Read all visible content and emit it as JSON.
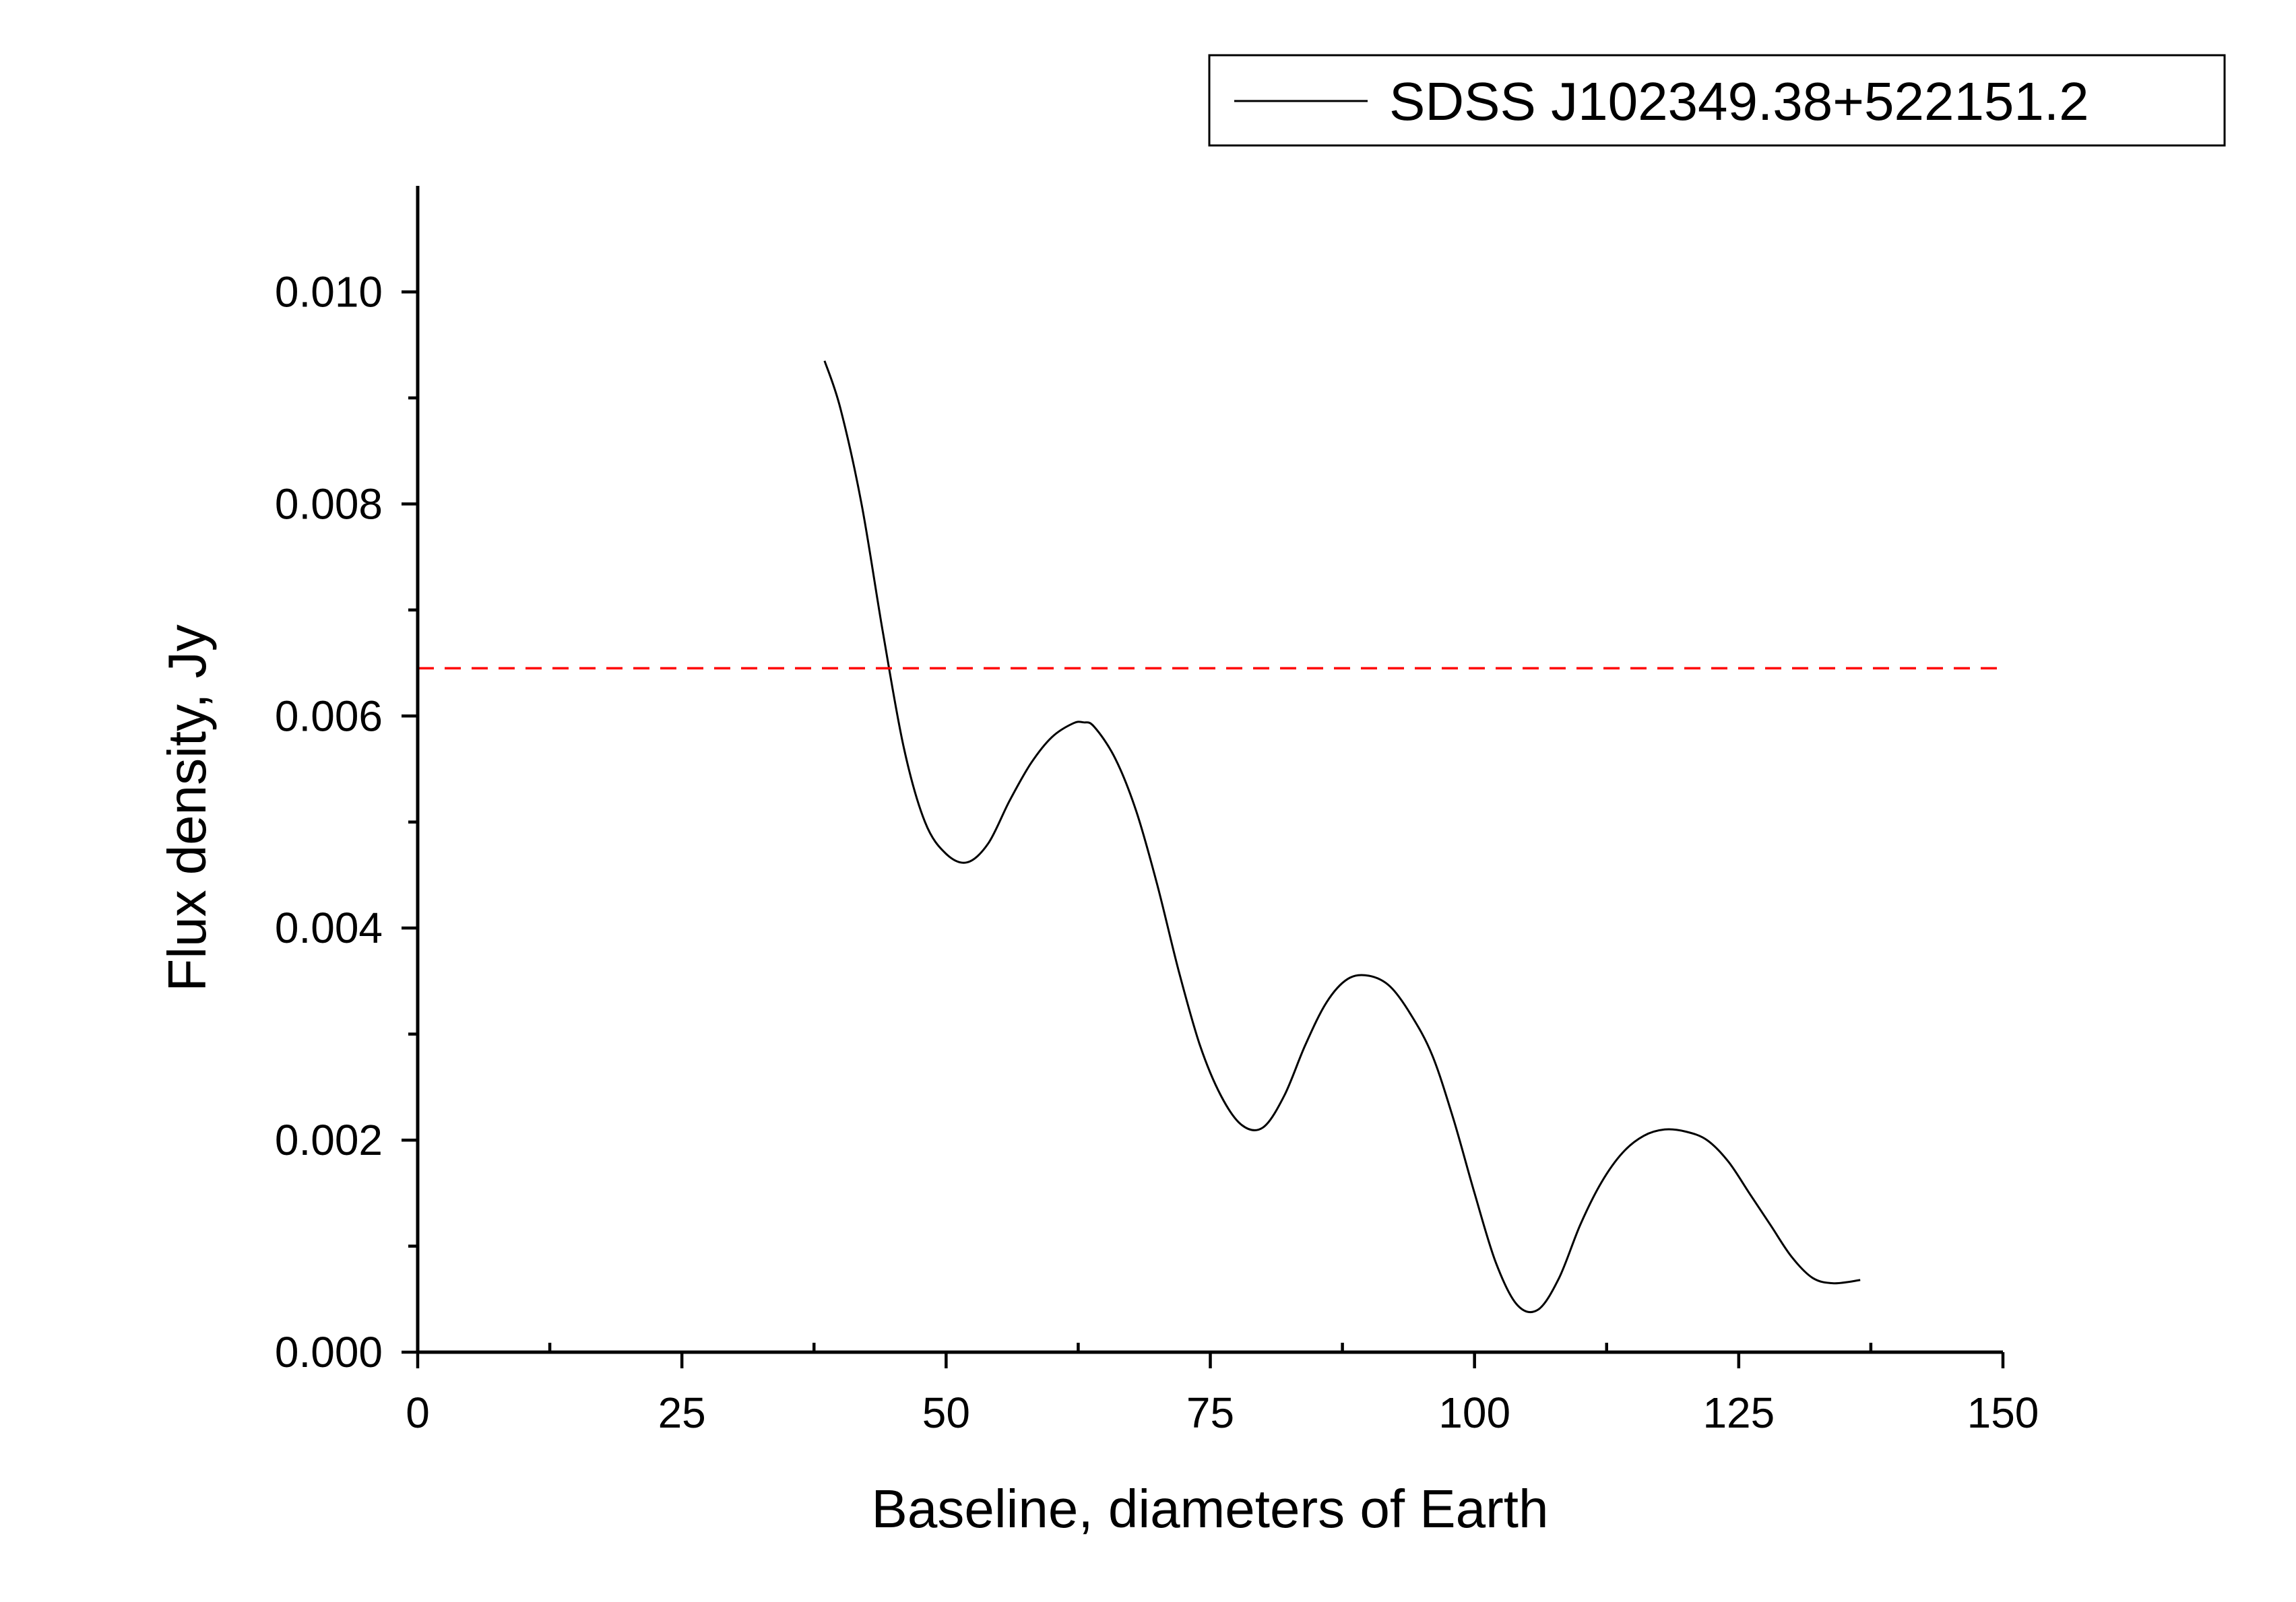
{
  "chart_data": {
    "type": "line",
    "xlabel": "Baseline, diameters of Earth",
    "ylabel": "Flux density, Jy",
    "xlim": [
      0,
      150
    ],
    "ylim": [
      0,
      0.011
    ],
    "x_ticks": [
      "0",
      "25",
      "50",
      "75",
      "100",
      "125",
      "150"
    ],
    "x_tick_values": [
      0,
      25,
      50,
      75,
      100,
      125,
      150
    ],
    "y_ticks": [
      "0.000",
      "0.002",
      "0.004",
      "0.006",
      "0.008",
      "0.010"
    ],
    "y_tick_values": [
      0,
      0.002,
      0.004,
      0.006,
      0.008,
      0.01
    ],
    "x_minor_step": 12.5,
    "y_minor_step": 0.001,
    "grid": false,
    "legend_position": "top-right",
    "series": [
      {
        "name": "SDSS J102349.38+522151.2",
        "color": "#000000",
        "style": "solid",
        "x": [
          38.5,
          40,
          42,
          44,
          46,
          48,
          50,
          52,
          54,
          56,
          58,
          60,
          62,
          63,
          64,
          66,
          68,
          70,
          72,
          74,
          76,
          78,
          80,
          82,
          84,
          86,
          88,
          90,
          92,
          94,
          96,
          98,
          100,
          102,
          104,
          106,
          108,
          110,
          112,
          114,
          116,
          118,
          120,
          122,
          124,
          126,
          128,
          130,
          132,
          134,
          136.5
        ],
        "y": [
          0.00935,
          0.0089,
          0.008,
          0.0068,
          0.0057,
          0.005,
          0.0047,
          0.00462,
          0.0048,
          0.0052,
          0.00555,
          0.0058,
          0.00593,
          0.00594,
          0.0059,
          0.0056,
          0.0051,
          0.0044,
          0.0036,
          0.0029,
          0.00242,
          0.00214,
          0.00212,
          0.00242,
          0.0029,
          0.0033,
          0.00352,
          0.00355,
          0.00345,
          0.00318,
          0.0028,
          0.0022,
          0.0015,
          0.00085,
          0.00045,
          0.0004,
          0.0007,
          0.0012,
          0.0016,
          0.00188,
          0.00204,
          0.0021,
          0.00208,
          0.002,
          0.0018,
          0.0015,
          0.0012,
          0.0009,
          0.0007,
          0.00065,
          0.00068
        ]
      },
      {
        "color": "#ff0000",
        "style": "dashed",
        "x": [
          0,
          150
        ],
        "y": [
          0.00645,
          0.00645
        ]
      }
    ]
  }
}
